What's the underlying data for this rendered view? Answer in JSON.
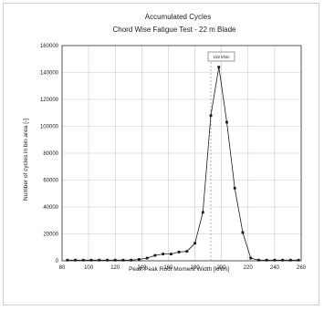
{
  "chart_data": {
    "type": "line",
    "title": "Accumulated Cycles",
    "subtitle": "Chord Wise Fatigue Test - 22 m Blade",
    "xlabel": "Peak-Peak Root Moment Width [kNm]",
    "ylabel": "Number of cycles in bin area [-]",
    "xlim": [
      80,
      260
    ],
    "ylim": [
      0,
      160000
    ],
    "xticks": [
      80,
      100,
      120,
      140,
      160,
      180,
      200,
      220,
      240,
      260
    ],
    "yticks": [
      0,
      20000,
      40000,
      60000,
      80000,
      100000,
      120000,
      140000,
      160000
    ],
    "xtick_labels": [
      "80",
      "100",
      "120",
      "140",
      "160",
      "180",
      "200",
      "220",
      "240",
      "260"
    ],
    "ytick_labels": [
      "0",
      "20000",
      "40000",
      "60000",
      "80000",
      "100000",
      "120000",
      "140000",
      "160000"
    ],
    "grid": true,
    "annotation": {
      "text": "192 kNm",
      "x": 192
    },
    "series": [
      {
        "color": "#1a1a1a",
        "x": [
          84,
          90,
          96,
          102,
          108,
          114,
          120,
          126,
          132,
          138,
          144,
          150,
          156,
          162,
          168,
          174,
          180,
          186,
          192,
          198,
          204,
          210,
          216,
          222,
          228,
          234,
          240,
          246,
          252,
          258
        ],
        "y": [
          500,
          500,
          500,
          500,
          500,
          500,
          500,
          500,
          500,
          1000,
          2000,
          4000,
          5000,
          5000,
          6500,
          7000,
          13000,
          36000,
          108000,
          144000,
          103000,
          54000,
          21000,
          2000,
          500,
          500,
          500,
          500,
          500,
          500
        ]
      }
    ]
  }
}
